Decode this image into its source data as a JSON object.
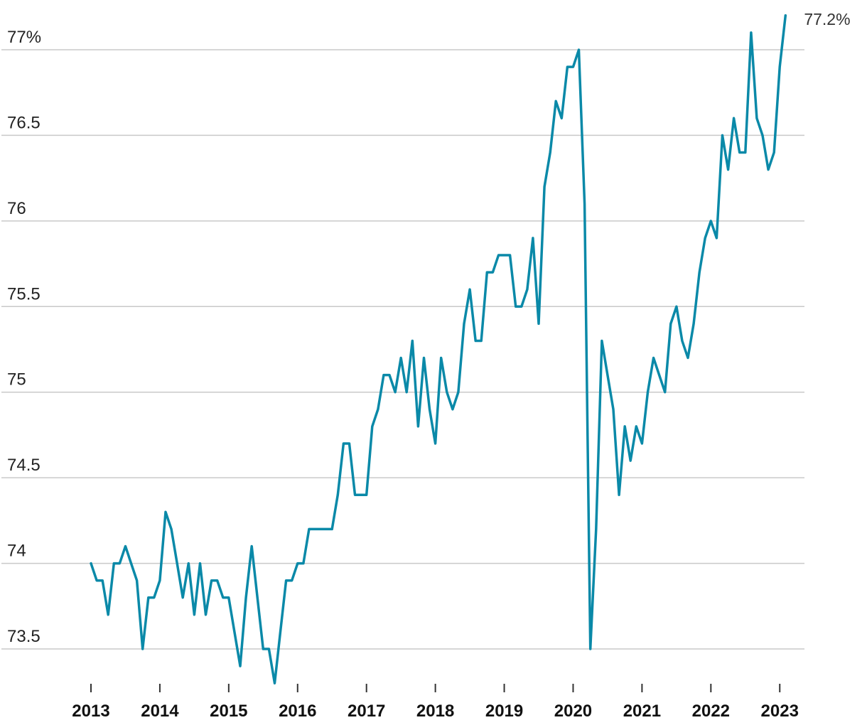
{
  "chart_data": {
    "type": "line",
    "title": "",
    "xlabel": "",
    "ylabel": "",
    "x_range": [
      2013,
      2023.08
    ],
    "ylim": [
      73.3,
      77.2
    ],
    "grid": true,
    "legend": "none",
    "line_color": "#0a89a8",
    "y_ticks": [
      {
        "value": 77,
        "label": "77%"
      },
      {
        "value": 76.5,
        "label": "76.5"
      },
      {
        "value": 76,
        "label": "76"
      },
      {
        "value": 75.5,
        "label": "75.5"
      },
      {
        "value": 75,
        "label": "75"
      },
      {
        "value": 74.5,
        "label": "74.5"
      },
      {
        "value": 74,
        "label": "74"
      },
      {
        "value": 73.5,
        "label": "73.5"
      }
    ],
    "x_ticks": [
      {
        "value": 2013,
        "label": "2013"
      },
      {
        "value": 2014,
        "label": "2014"
      },
      {
        "value": 2015,
        "label": "2015"
      },
      {
        "value": 2016,
        "label": "2016"
      },
      {
        "value": 2017,
        "label": "2017"
      },
      {
        "value": 2018,
        "label": "2018"
      },
      {
        "value": 2019,
        "label": "2019"
      },
      {
        "value": 2020,
        "label": "2020"
      },
      {
        "value": 2021,
        "label": "2021"
      },
      {
        "value": 2022,
        "label": "2022"
      },
      {
        "value": 2023,
        "label": "2023"
      }
    ],
    "series": [
      {
        "start_year": 2013,
        "step": 0.0833333,
        "values": [
          74.0,
          73.9,
          73.9,
          73.7,
          74.0,
          74.0,
          74.1,
          74.0,
          73.9,
          73.5,
          73.8,
          73.8,
          73.9,
          74.3,
          74.2,
          74.0,
          73.8,
          74.0,
          73.7,
          74.0,
          73.7,
          73.9,
          73.9,
          73.8,
          73.8,
          73.6,
          73.4,
          73.8,
          74.1,
          73.8,
          73.5,
          73.5,
          73.3,
          73.6,
          73.9,
          73.9,
          74.0,
          74.0,
          74.2,
          74.2,
          74.2,
          74.2,
          74.2,
          74.4,
          74.7,
          74.7,
          74.4,
          74.4,
          74.4,
          74.8,
          74.9,
          75.1,
          75.1,
          75.0,
          75.2,
          75.0,
          75.3,
          74.8,
          75.2,
          74.9,
          74.7,
          75.2,
          75.0,
          74.9,
          75.0,
          75.4,
          75.6,
          75.3,
          75.3,
          75.7,
          75.7,
          75.8,
          75.8,
          75.8,
          75.5,
          75.5,
          75.6,
          75.9,
          75.4,
          76.2,
          76.4,
          76.7,
          76.6,
          76.9,
          76.9,
          77.0,
          76.1,
          73.5,
          74.2,
          75.3,
          75.1,
          74.9,
          74.4,
          74.8,
          74.6,
          74.8,
          74.7,
          75.0,
          75.2,
          75.1,
          75.0,
          75.4,
          75.5,
          75.3,
          75.2,
          75.4,
          75.7,
          75.9,
          76.0,
          75.9,
          76.5,
          76.3,
          76.6,
          76.4,
          76.4,
          77.1,
          76.6,
          76.5,
          76.3,
          76.4,
          76.9,
          77.2
        ]
      }
    ],
    "end_label": "77.2%"
  }
}
